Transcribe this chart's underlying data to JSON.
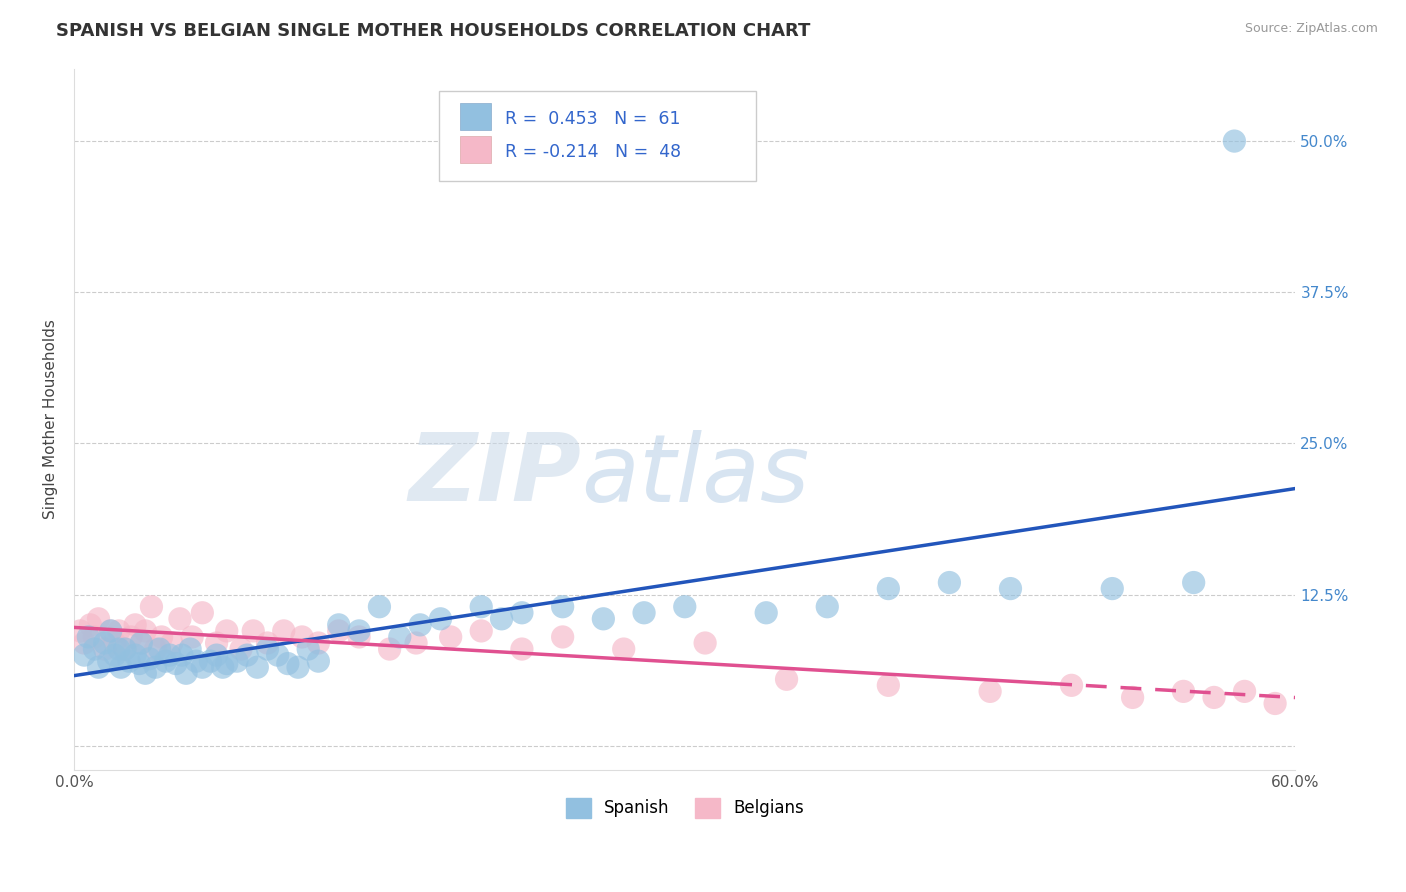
{
  "title": "SPANISH VS BELGIAN SINGLE MOTHER HOUSEHOLDS CORRELATION CHART",
  "source": "Source: ZipAtlas.com",
  "ylabel": "Single Mother Households",
  "xlim": [
    0.0,
    0.6
  ],
  "ylim": [
    -0.02,
    0.56
  ],
  "xticks": [
    0.0,
    0.1,
    0.2,
    0.3,
    0.4,
    0.5,
    0.6
  ],
  "xticklabels": [
    "0.0%",
    "",
    "",
    "",
    "",
    "",
    "60.0%"
  ],
  "yticks": [
    0.0,
    0.125,
    0.25,
    0.375,
    0.5
  ],
  "yticklabels": [
    "",
    "12.5%",
    "25.0%",
    "37.5%",
    "50.0%"
  ],
  "grid_color": "#cccccc",
  "background_color": "#ffffff",
  "spanish_color": "#92c0e0",
  "belgian_color": "#f5b8c8",
  "spanish_line_color": "#2255bb",
  "belgian_line_color": "#e05090",
  "R_spanish": 0.453,
  "N_spanish": 61,
  "R_belgian": -0.214,
  "N_belgian": 48,
  "legend_label_spanish": "Spanish",
  "legend_label_belgian": "Belgians",
  "title_fontsize": 13,
  "axis_label_fontsize": 11,
  "tick_fontsize": 11,
  "spanish_x": [
    0.005,
    0.007,
    0.01,
    0.012,
    0.015,
    0.017,
    0.018,
    0.02,
    0.022,
    0.023,
    0.025,
    0.027,
    0.03,
    0.032,
    0.033,
    0.035,
    0.037,
    0.04,
    0.042,
    0.045,
    0.047,
    0.05,
    0.053,
    0.055,
    0.057,
    0.06,
    0.063,
    0.067,
    0.07,
    0.073,
    0.075,
    0.08,
    0.085,
    0.09,
    0.095,
    0.1,
    0.105,
    0.11,
    0.115,
    0.12,
    0.13,
    0.14,
    0.15,
    0.16,
    0.17,
    0.18,
    0.2,
    0.21,
    0.22,
    0.24,
    0.26,
    0.28,
    0.3,
    0.34,
    0.37,
    0.4,
    0.43,
    0.46,
    0.51,
    0.55,
    0.57
  ],
  "spanish_y": [
    0.075,
    0.09,
    0.08,
    0.065,
    0.085,
    0.07,
    0.095,
    0.075,
    0.08,
    0.065,
    0.08,
    0.07,
    0.075,
    0.068,
    0.085,
    0.06,
    0.072,
    0.065,
    0.08,
    0.07,
    0.075,
    0.068,
    0.075,
    0.06,
    0.08,
    0.07,
    0.065,
    0.07,
    0.075,
    0.065,
    0.068,
    0.07,
    0.075,
    0.065,
    0.08,
    0.075,
    0.068,
    0.065,
    0.08,
    0.07,
    0.1,
    0.095,
    0.115,
    0.09,
    0.1,
    0.105,
    0.115,
    0.105,
    0.11,
    0.115,
    0.105,
    0.11,
    0.115,
    0.11,
    0.115,
    0.13,
    0.135,
    0.13,
    0.13,
    0.135,
    0.5
  ],
  "belgian_x": [
    0.003,
    0.005,
    0.008,
    0.01,
    0.012,
    0.015,
    0.018,
    0.02,
    0.022,
    0.025,
    0.028,
    0.03,
    0.033,
    0.035,
    0.038,
    0.04,
    0.043,
    0.048,
    0.052,
    0.058,
    0.063,
    0.07,
    0.075,
    0.082,
    0.088,
    0.095,
    0.103,
    0.112,
    0.12,
    0.13,
    0.14,
    0.155,
    0.168,
    0.185,
    0.2,
    0.22,
    0.24,
    0.27,
    0.31,
    0.35,
    0.4,
    0.45,
    0.49,
    0.52,
    0.545,
    0.56,
    0.575,
    0.59
  ],
  "belgian_y": [
    0.095,
    0.085,
    0.1,
    0.09,
    0.105,
    0.08,
    0.095,
    0.085,
    0.095,
    0.08,
    0.09,
    0.1,
    0.085,
    0.095,
    0.115,
    0.08,
    0.09,
    0.085,
    0.105,
    0.09,
    0.11,
    0.085,
    0.095,
    0.08,
    0.095,
    0.085,
    0.095,
    0.09,
    0.085,
    0.095,
    0.09,
    0.08,
    0.085,
    0.09,
    0.095,
    0.08,
    0.09,
    0.08,
    0.085,
    0.055,
    0.05,
    0.045,
    0.05,
    0.04,
    0.045,
    0.04,
    0.045,
    0.035
  ]
}
